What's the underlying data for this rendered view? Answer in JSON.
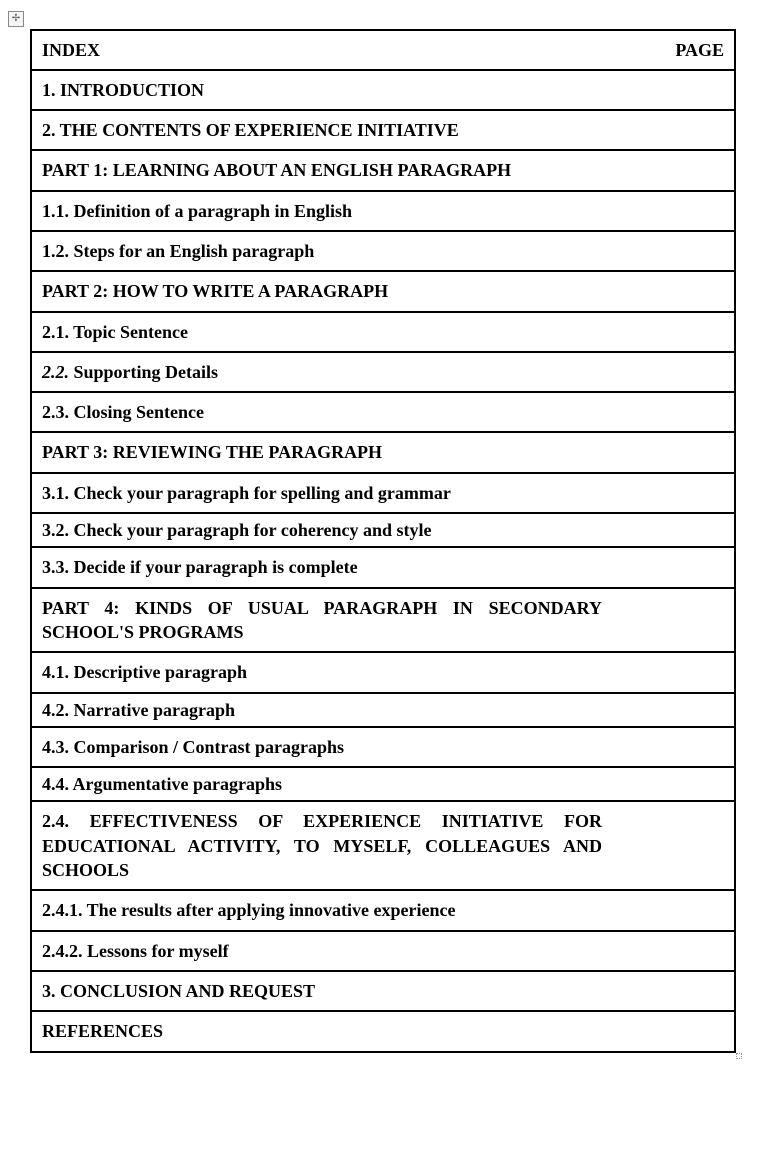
{
  "header": {
    "index_label": "INDEX",
    "page_label": "PAGE"
  },
  "rows": [
    {
      "text": "1. INTRODUCTION"
    },
    {
      "text": "2. THE CONTENTS OF EXPERIENCE INITIATIVE"
    },
    {
      "text": "PART 1: LEARNING ABOUT AN ENGLISH PARAGRAPH"
    },
    {
      "text": "1.1. Definition of a paragraph in English"
    },
    {
      "text": "1.2. Steps for an English paragraph"
    },
    {
      "text": "PART 2: HOW TO WRITE A PARAGRAPH"
    },
    {
      "text": "2.1. Topic Sentence"
    },
    {
      "num_italic": "2.2.",
      "rest": " Supporting Details"
    },
    {
      "text": "2.3. Closing Sentence"
    },
    {
      "text": "PART 3: REVIEWING THE PARAGRAPH"
    },
    {
      "text": "3.1. Check your paragraph for spelling and grammar"
    },
    {
      "text": "3.2. Check your paragraph for coherency and style",
      "tight": true
    },
    {
      "text": "3.3. Decide if your paragraph is complete"
    },
    {
      "text": "PART 4: KINDS OF USUAL PARAGRAPH IN SECONDARY SCHOOL'S PROGRAMS",
      "justify": true
    },
    {
      "text": "4.1. Descriptive paragraph"
    },
    {
      "text": "4.2. Narrative paragraph",
      "tight": true
    },
    {
      "text": "4.3. Comparison / Contrast paragraphs"
    },
    {
      "text": "4.4. Argumentative paragraphs",
      "tight": true
    },
    {
      "text": "2.4. EFFECTIVENESS OF EXPERIENCE INITIATIVE FOR EDUCATIONAL ACTIVITY, TO MYSELF, COLLEAGUES AND SCHOOLS",
      "justify": true
    },
    {
      "text": "2.4.1. The results after applying innovative experience"
    },
    {
      "text": "2.4.2. Lessons for myself"
    },
    {
      "text": "3. CONCLUSION AND REQUEST"
    },
    {
      "text": "REFERENCES"
    }
  ]
}
